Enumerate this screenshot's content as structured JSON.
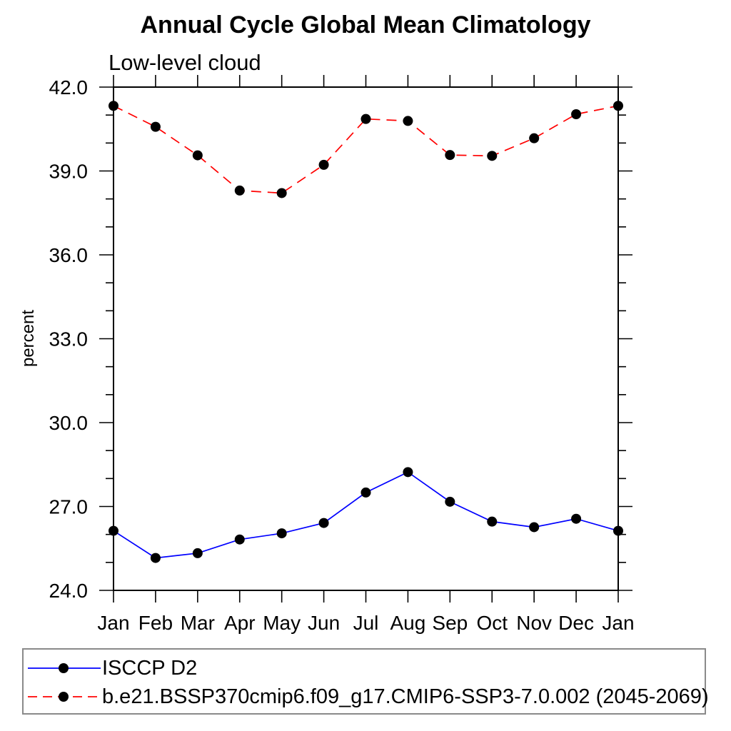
{
  "chart_data": {
    "type": "line",
    "title": "Annual Cycle Global Mean Climatology",
    "subtitle": "Low-level cloud",
    "ylabel": "percent",
    "xlabel": "",
    "categories": [
      "Jan",
      "Feb",
      "Mar",
      "Apr",
      "May",
      "Jun",
      "Jul",
      "Aug",
      "Sep",
      "Oct",
      "Nov",
      "Dec",
      "Jan"
    ],
    "ylim": [
      24.0,
      42.0
    ],
    "y_major_ticks": [
      24.0,
      27.0,
      30.0,
      33.0,
      36.0,
      39.0,
      42.0
    ],
    "y_minor_tick_step": 1.0,
    "y_tick_label_format": "0.1f",
    "grid": false,
    "legend_position": "bottom-box",
    "frame_color": "#000000",
    "marker": {
      "shape": "circle",
      "color": "#000000",
      "radius_px": 8
    },
    "series": [
      {
        "name": "ISCCP D2",
        "color": "#0000ff",
        "line_style": "solid",
        "values": [
          26.13,
          25.16,
          25.33,
          25.82,
          26.04,
          26.41,
          27.5,
          28.23,
          27.17,
          26.46,
          26.26,
          26.56,
          26.13
        ]
      },
      {
        "name": "b.e21.BSSP370cmip6.f09_g17.CMIP6-SSP3-7.0.002 (2045-2069)",
        "color": "#ff0000",
        "line_style": "dashed",
        "values": [
          41.33,
          40.58,
          39.56,
          38.3,
          38.21,
          39.22,
          40.86,
          40.79,
          39.57,
          39.54,
          40.17,
          41.03,
          41.33
        ]
      }
    ]
  }
}
